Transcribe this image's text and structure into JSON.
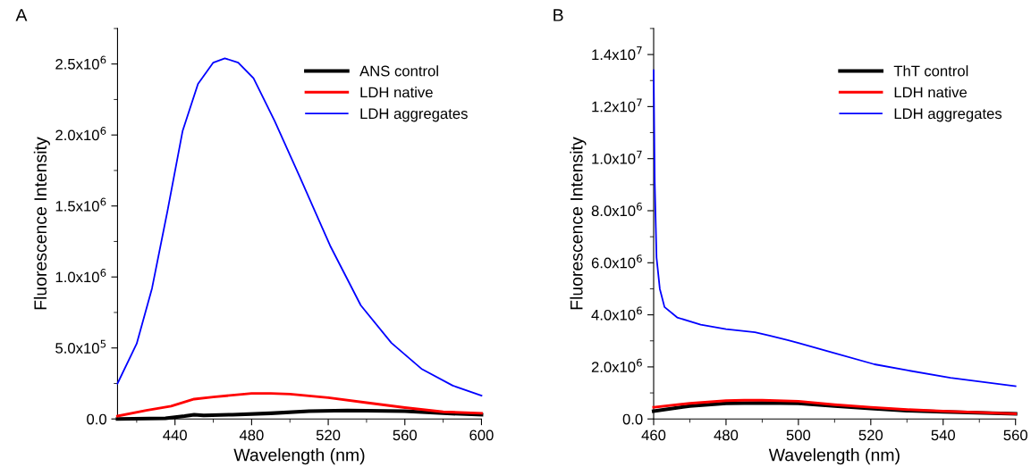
{
  "chart_data": [
    {
      "type": "line",
      "title": "A",
      "xlabel": "Wavelength (nm)",
      "ylabel": "Fluorescence Intensity",
      "xlim": [
        410,
        600
      ],
      "xticks": [
        440,
        480,
        520,
        560,
        600
      ],
      "ylim": [
        0,
        2750000
      ],
      "yticks": [
        {
          "value": 0,
          "label": "0.0"
        },
        {
          "value": 500000,
          "label": "5.0x10$^{5}$"
        },
        {
          "value": 1000000,
          "label": "1.0x10$^{6}$"
        },
        {
          "value": 1500000,
          "label": "1.5x10$^{6}$"
        },
        {
          "value": 2000000,
          "label": "2.0x10$^{6}$"
        },
        {
          "value": 2500000,
          "label": "2.5x10$^{6}$"
        }
      ],
      "grid": false,
      "legend": "top right",
      "marker": "none",
      "line_style": "solid",
      "series": [
        {
          "name": "ANS control",
          "color": "#000000",
          "x": [
            410,
            435,
            445,
            450,
            455,
            470,
            490,
            510,
            530,
            560,
            580,
            600
          ],
          "values": [
            0,
            5000,
            20000,
            30000,
            25000,
            30000,
            40000,
            55000,
            60000,
            55000,
            40000,
            30000
          ]
        },
        {
          "name": "LDH native",
          "color": "#ff0000",
          "x": [
            410,
            425,
            438,
            450,
            460,
            480,
            490,
            500,
            520,
            540,
            560,
            580,
            600
          ],
          "values": [
            20000,
            60000,
            90000,
            140000,
            155000,
            180000,
            180000,
            175000,
            150000,
            115000,
            80000,
            50000,
            40000
          ]
        },
        {
          "name": "LDH aggregates",
          "color": "#0000ff",
          "x": [
            410,
            420,
            428,
            436,
            444,
            452,
            460,
            466,
            473,
            481,
            492,
            505,
            521,
            537,
            553,
            569,
            585,
            600
          ],
          "values": [
            250000,
            530000,
            920000,
            1460000,
            2030000,
            2360000,
            2510000,
            2540000,
            2510000,
            2400000,
            2100000,
            1710000,
            1220000,
            800000,
            535000,
            350000,
            235000,
            165000
          ]
        }
      ]
    },
    {
      "type": "line",
      "title": "B",
      "xlabel": "Wavelength (nm)",
      "ylabel": "Fluorescence Intensity",
      "xlim": [
        460,
        560
      ],
      "xticks": [
        460,
        480,
        500,
        520,
        540,
        560
      ],
      "ylim": [
        0,
        15000000
      ],
      "yticks": [
        {
          "value": 0,
          "label": "0.0"
        },
        {
          "value": 2000000,
          "label": "2.0x10$^{6}$"
        },
        {
          "value": 4000000,
          "label": "4.0x10$^{6}$"
        },
        {
          "value": 6000000,
          "label": "6.0x10$^{6}$"
        },
        {
          "value": 8000000,
          "label": "8.0x10$^{6}$"
        },
        {
          "value": 10000000,
          "label": "1.0x10$^{7}$"
        },
        {
          "value": 12000000,
          "label": "1.2x10$^{7}$"
        },
        {
          "value": 14000000,
          "label": "1.4x10$^{7}$"
        }
      ],
      "grid": false,
      "legend": "top right",
      "marker": "none",
      "line_style": "solid",
      "series": [
        {
          "name": "ThT control",
          "color": "#000000",
          "x": [
            460,
            470,
            480,
            490,
            500,
            510,
            520,
            530,
            540,
            560
          ],
          "values": [
            300000,
            500000,
            600000,
            620000,
            600000,
            500000,
            400000,
            320000,
            270000,
            200000
          ]
        },
        {
          "name": "LDH native",
          "color": "#ff0000",
          "x": [
            460,
            470,
            480,
            485,
            490,
            500,
            510,
            520,
            530,
            540,
            560
          ],
          "values": [
            450000,
            600000,
            700000,
            720000,
            720000,
            680000,
            550000,
            450000,
            360000,
            300000,
            200000
          ]
        },
        {
          "name": "LDH aggregates",
          "color": "#0000ff",
          "x": [
            460,
            460.3,
            460.8,
            461.7,
            463,
            466.5,
            473,
            480,
            488,
            492,
            497,
            500,
            509,
            521,
            530,
            542,
            560
          ],
          "values": [
            13400000,
            9100000,
            6200000,
            5000000,
            4300000,
            3900000,
            3620000,
            3450000,
            3330000,
            3200000,
            3030000,
            2920000,
            2570000,
            2100000,
            1870000,
            1580000,
            1260000
          ]
        }
      ]
    }
  ]
}
